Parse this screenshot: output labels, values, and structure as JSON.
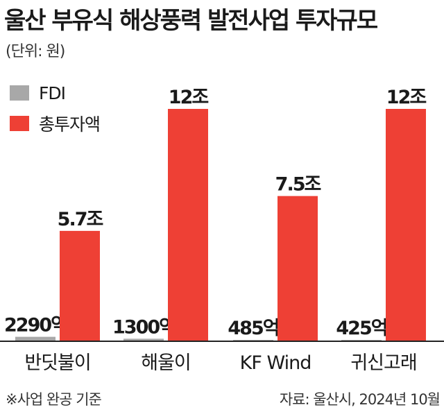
{
  "title": "울산 부유식 해상풍력 발전사업 투자규모",
  "unit": "(단위: 원)",
  "footnote": "※사업 완공 기준",
  "source": "자료: 울산시, 2024년 10월",
  "colors": {
    "fdi": "#a8a8a8",
    "total": "#ee4035",
    "axis": "#222222"
  },
  "chart_data": {
    "type": "bar",
    "categories": [
      "반딧불이",
      "해울이",
      "KF Wind",
      "귀신고래"
    ],
    "unit": "원",
    "series": [
      {
        "name": "FDI",
        "values": [
          229000000000,
          130000000000,
          48500000000,
          42500000000
        ],
        "labels": [
          "2290억",
          "1300억",
          "485억",
          "425억"
        ]
      },
      {
        "name": "총투자액",
        "values": [
          5700000000000,
          12000000000000,
          7500000000000,
          12000000000000
        ],
        "labels": [
          "5.7조",
          "12조",
          "7.5조",
          "12조"
        ]
      }
    ],
    "ylim": [
      0,
      12000000000000
    ],
    "grid": false,
    "legend": "top-left"
  }
}
